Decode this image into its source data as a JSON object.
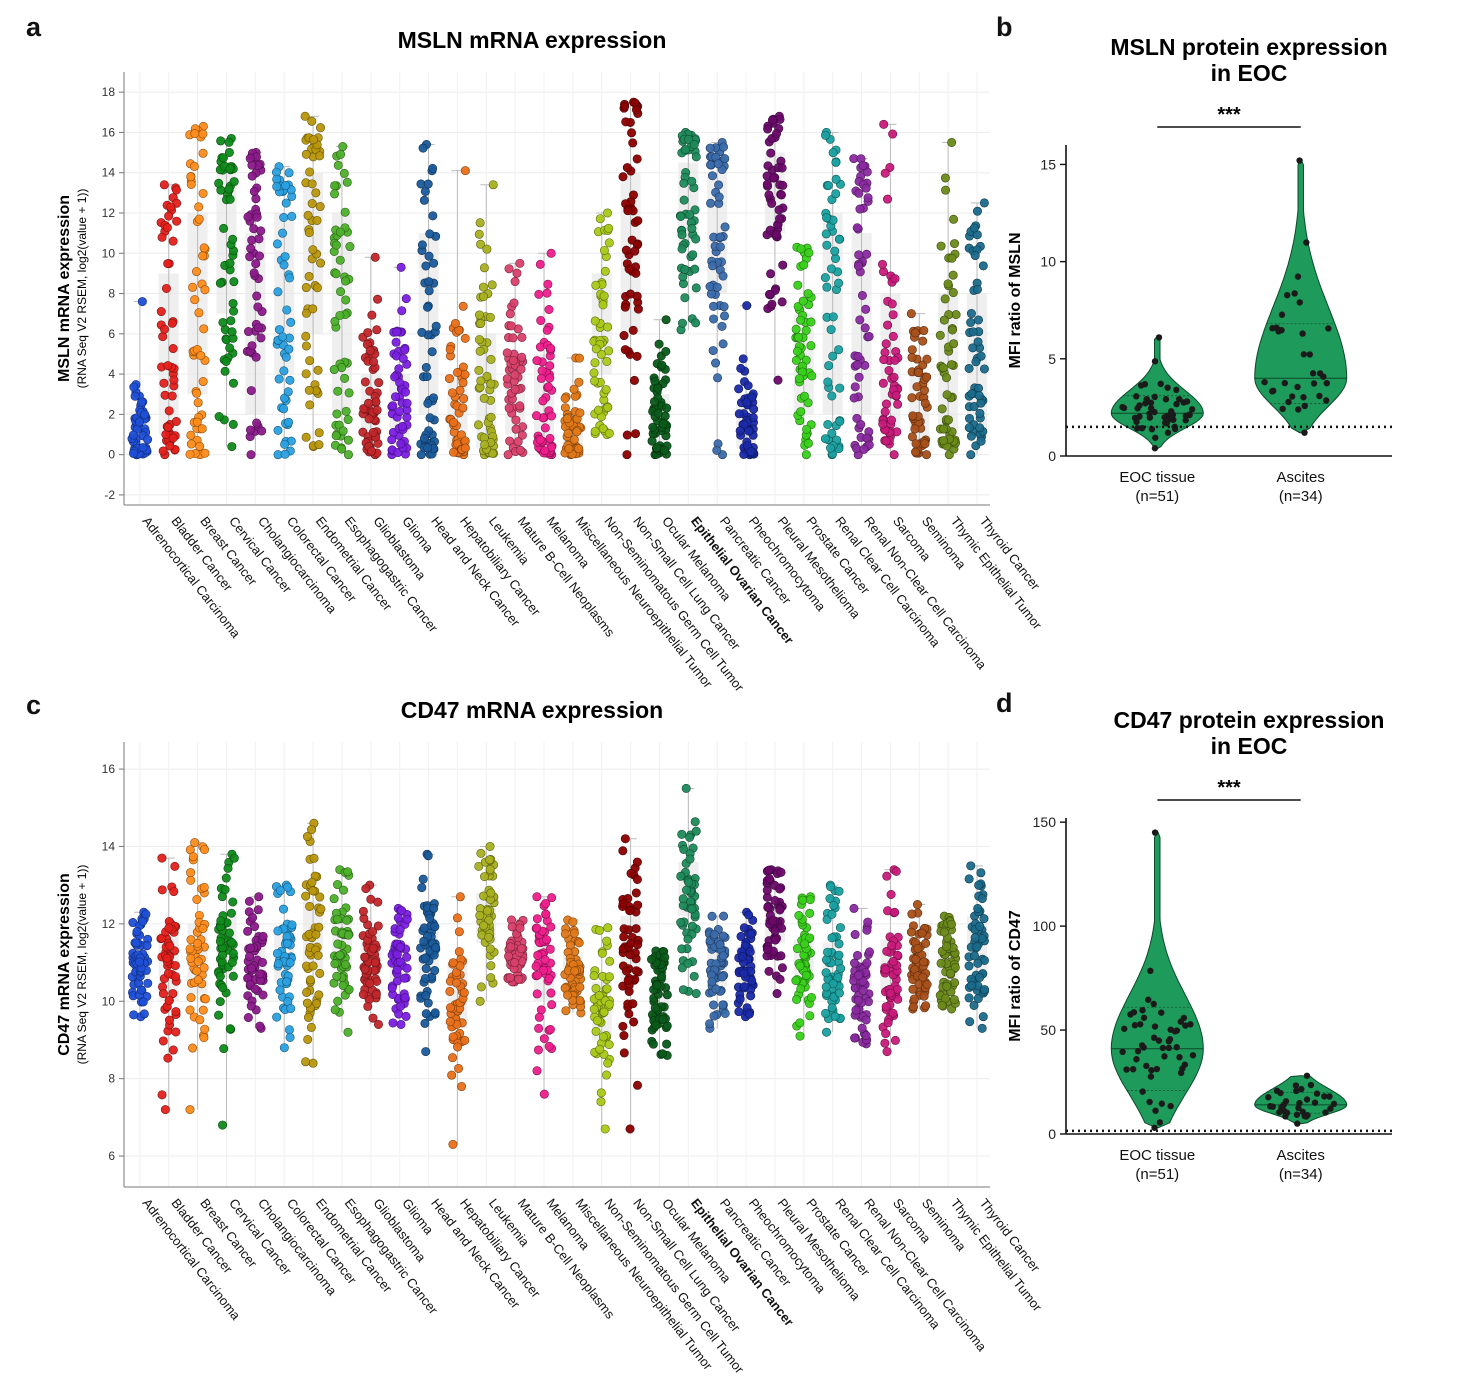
{
  "panels": {
    "a": "a",
    "b": "b",
    "c": "c",
    "d": "d"
  },
  "categories": [
    "Adrenocortical Carcinoma",
    "Bladder Cancer",
    "Breast Cancer",
    "Cervical Cancer",
    "Cholangiocarcinoma",
    "Colorectal Cancer",
    "Endometrial Cancer",
    "Esophagogastric Cancer",
    "Glioblastoma",
    "Glioma",
    "Head and Neck Cancer",
    "Hepatobiliary Cancer",
    "Leukemia",
    "Mature B-Cell Neoplasms",
    "Melanoma",
    "Miscellaneous Neuroepithelial Tumor",
    "Non-Seminomatous Germ Cell Tumor",
    "Non-Small Cell Lung Cancer",
    "Ocular Melanoma",
    "Epithelial Ovarian Cancer",
    "Pancreatic Cancer",
    "Pheochromocytoma",
    "Pleural Mesothelioma",
    "Prostate Cancer",
    "Renal Clear Cell Carcinoma",
    "Renal Non-Clear Cell Carcinoma",
    "Sarcoma",
    "Seminoma",
    "Thymic Epithelial Tumor",
    "Thyroid Cancer"
  ],
  "highlight_category": "Epithelial Ovarian Cancer",
  "colors": [
    "#1f4fd6",
    "#e3201b",
    "#ff8c1a",
    "#0f8a1a",
    "#8b1a8b",
    "#2aa0e0",
    "#b8960c",
    "#4caf2a",
    "#c0262a",
    "#7a1fe0",
    "#1a5a9a",
    "#e8701a",
    "#a8b020",
    "#d8406a",
    "#ee1e8c",
    "#e07818",
    "#a8c818",
    "#8b0000",
    "#0a5a1a",
    "#1e8a5a",
    "#3a6aaa",
    "#1a2aa8",
    "#6a0a6a",
    "#38d01a",
    "#1aa0a0",
    "#8a2aa0",
    "#c81a7a",
    "#a8501a",
    "#6a8a1a",
    "#1a6a8a"
  ],
  "violin_color": "#1e9a5a",
  "chart_data": [
    {
      "id": "a",
      "type": "scatter",
      "title": "MSLN mRNA expression",
      "ylabel": "MSLN mRNA expression",
      "ylabel_sub": "(RNA Seq V2 RSEM, log2(value + 1))",
      "ylim": [
        -2.5,
        19
      ],
      "yticks": [
        -2,
        0,
        2,
        4,
        6,
        8,
        10,
        12,
        14,
        16,
        18
      ],
      "grid": true,
      "series_ranges": [
        {
          "min": 0,
          "max": 7.6,
          "q1": 0.2,
          "q3": 2.2
        },
        {
          "min": 0,
          "max": 13.4,
          "q1": 1,
          "q3": 9
        },
        {
          "min": 0,
          "max": 16.3,
          "q1": 3,
          "q3": 12
        },
        {
          "min": 0.4,
          "max": 15.7,
          "q1": 7,
          "q3": 14
        },
        {
          "min": 0,
          "max": 15,
          "q1": 2,
          "q3": 11
        },
        {
          "min": 0,
          "max": 14.3,
          "q1": 4,
          "q3": 12
        },
        {
          "min": 0.4,
          "max": 16.8,
          "q1": 6,
          "q3": 14
        },
        {
          "min": 0,
          "max": 15.3,
          "q1": 2,
          "q3": 12
        },
        {
          "min": 0,
          "max": 9.8,
          "q1": 0.5,
          "q3": 4
        },
        {
          "min": 0,
          "max": 9.3,
          "q1": 0.5,
          "q3": 4
        },
        {
          "min": 0,
          "max": 15.4,
          "q1": 2,
          "q3": 11
        },
        {
          "min": 0,
          "max": 14.1,
          "q1": 0.3,
          "q3": 4
        },
        {
          "min": 0,
          "max": 13.4,
          "q1": 0.3,
          "q3": 6
        },
        {
          "min": 0,
          "max": 9.5,
          "q1": 1,
          "q3": 5
        },
        {
          "min": 0,
          "max": 10,
          "q1": 0.5,
          "q3": 5
        },
        {
          "min": 0,
          "max": 4.8,
          "q1": 0.2,
          "q3": 2
        },
        {
          "min": 1,
          "max": 12,
          "q1": 4,
          "q3": 9
        },
        {
          "min": 0,
          "max": 17.5,
          "q1": 6,
          "q3": 14
        },
        {
          "min": 0,
          "max": 6.7,
          "q1": 0.3,
          "q3": 3
        },
        {
          "min": 6.2,
          "max": 16,
          "q1": 10.5,
          "q3": 14.5
        },
        {
          "min": 0,
          "max": 15.5,
          "q1": 8,
          "q3": 14
        },
        {
          "min": 0,
          "max": 7.4,
          "q1": 0.3,
          "q3": 2.5
        },
        {
          "min": 3.7,
          "max": 16.8,
          "q1": 11,
          "q3": 15
        },
        {
          "min": 0,
          "max": 10.3,
          "q1": 2,
          "q3": 7
        },
        {
          "min": 0,
          "max": 16,
          "q1": 2,
          "q3": 12
        },
        {
          "min": 0,
          "max": 14.7,
          "q1": 2,
          "q3": 11
        },
        {
          "min": 0,
          "max": 16.4,
          "q1": 1,
          "q3": 8
        },
        {
          "min": 0,
          "max": 7,
          "q1": 0.5,
          "q3": 4
        },
        {
          "min": 0,
          "max": 15.5,
          "q1": 1,
          "q3": 8
        },
        {
          "min": 0,
          "max": 12.5,
          "q1": 1,
          "q3": 8
        }
      ]
    },
    {
      "id": "b",
      "type": "violin",
      "title_line1": "MSLN protein expression",
      "title_line2": "in EOC",
      "ylabel": "MFI ratio of MSLN",
      "ylim": [
        0,
        16
      ],
      "yticks": [
        0,
        5,
        10,
        15
      ],
      "groups": [
        {
          "label": "EOC tissue",
          "n": "(n=51)",
          "min": 0.4,
          "max": 6.1,
          "median": 2.2,
          "q1": 1.5,
          "q3": 3.1
        },
        {
          "label": "Ascites",
          "n": "(n=34)",
          "min": 1.2,
          "max": 15.2,
          "median": 4.0,
          "q1": 2.7,
          "q3": 6.8
        }
      ],
      "reference_line": 1.5,
      "significance": "***"
    },
    {
      "id": "c",
      "type": "scatter",
      "title": "CD47 mRNA expression",
      "ylabel": "CD47 mRNA expression",
      "ylabel_sub": "(RNA Seq V2 RSEM, log2(value + 1))",
      "ylim": [
        5.2,
        16.7
      ],
      "yticks": [
        6,
        8,
        10,
        12,
        14,
        16
      ],
      "grid": true,
      "series_ranges": [
        {
          "min": 9.6,
          "max": 12.3,
          "q1": 10.5,
          "q3": 11.4
        },
        {
          "min": 7.2,
          "max": 13.7,
          "q1": 10,
          "q3": 11.8
        },
        {
          "min": 7.2,
          "max": 14.1,
          "q1": 10.2,
          "q3": 12
        },
        {
          "min": 6.8,
          "max": 13.8,
          "q1": 10.6,
          "q3": 12.2
        },
        {
          "min": 9.3,
          "max": 12.7,
          "q1": 10.4,
          "q3": 11.5
        },
        {
          "min": 8.8,
          "max": 13,
          "q1": 10.5,
          "q3": 11.8
        },
        {
          "min": 8.4,
          "max": 14.6,
          "q1": 10.8,
          "q3": 12.6
        },
        {
          "min": 9.2,
          "max": 13.4,
          "q1": 10.8,
          "q3": 12.2
        },
        {
          "min": 9.4,
          "max": 13,
          "q1": 10.8,
          "q3": 11.8
        },
        {
          "min": 9.4,
          "max": 12.4,
          "q1": 10.5,
          "q3": 11.5
        },
        {
          "min": 8.7,
          "max": 13.8,
          "q1": 10.6,
          "q3": 12
        },
        {
          "min": 6.3,
          "max": 12.7,
          "q1": 9.3,
          "q3": 11
        },
        {
          "min": 10,
          "max": 14,
          "q1": 11.5,
          "q3": 12.8
        },
        {
          "min": 10.5,
          "max": 12.1,
          "q1": 10.9,
          "q3": 11.6
        },
        {
          "min": 7.6,
          "max": 12.7,
          "q1": 10,
          "q3": 11.5
        },
        {
          "min": 9.7,
          "max": 12.1,
          "q1": 10.4,
          "q3": 11.2
        },
        {
          "min": 6.7,
          "max": 11.9,
          "q1": 9,
          "q3": 10.5
        },
        {
          "min": 6.7,
          "max": 14.2,
          "q1": 10.5,
          "q3": 12.2
        },
        {
          "min": 8.6,
          "max": 11.3,
          "q1": 9.6,
          "q3": 10.6
        },
        {
          "min": 10.2,
          "max": 15.5,
          "q1": 12.2,
          "q3": 13.6
        },
        {
          "min": 9.3,
          "max": 12.2,
          "q1": 10.4,
          "q3": 11.4
        },
        {
          "min": 9.6,
          "max": 12.3,
          "q1": 10.3,
          "q3": 11.4
        },
        {
          "min": 10.2,
          "max": 13.4,
          "q1": 11.5,
          "q3": 12.5
        },
        {
          "min": 9.1,
          "max": 12.7,
          "q1": 10.5,
          "q3": 11.6
        },
        {
          "min": 9.2,
          "max": 13,
          "q1": 10.3,
          "q3": 11.5
        },
        {
          "min": 8.9,
          "max": 12.4,
          "q1": 9.8,
          "q3": 11
        },
        {
          "min": 8.7,
          "max": 13.4,
          "q1": 10.2,
          "q3": 11.6
        },
        {
          "min": 9.8,
          "max": 12.5,
          "q1": 10.6,
          "q3": 11.5
        },
        {
          "min": 9.8,
          "max": 12.2,
          "q1": 10.4,
          "q3": 11.4
        },
        {
          "min": 9.3,
          "max": 13.5,
          "q1": 10.8,
          "q3": 12.2
        }
      ]
    },
    {
      "id": "d",
      "type": "violin",
      "title_line1": "CD47 protein expression",
      "title_line2": "in EOC",
      "ylabel": "MFI ratio of CD47",
      "ylim": [
        0,
        152
      ],
      "yticks": [
        0,
        50,
        100,
        150
      ],
      "groups": [
        {
          "label": "EOC tissue",
          "n": "(n=51)",
          "min": 3,
          "max": 145,
          "median": 41,
          "q1": 21,
          "q3": 61
        },
        {
          "label": "Ascites",
          "n": "(n=34)",
          "min": 5,
          "max": 28,
          "median": 14,
          "q1": 10,
          "q3": 20
        }
      ],
      "reference_line": 1.5,
      "significance": "***"
    }
  ]
}
